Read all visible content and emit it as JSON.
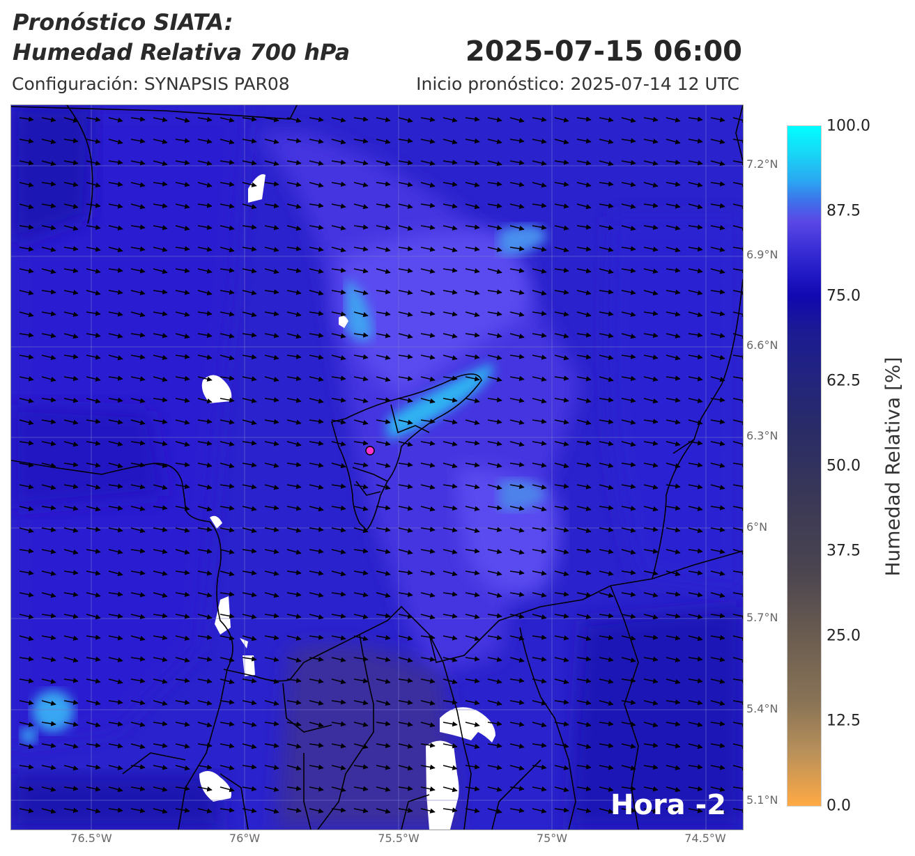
{
  "header": {
    "title_line1": "Pronóstico SIATA:",
    "title_line2": "Humedad Relativa 700 hPa",
    "valid_time": "2025-07-15 06:00",
    "configuration": "Configuración: SYNAPSIS PAR08",
    "forecast_start": "Inicio pronóstico: 2025-07-14 12 UTC"
  },
  "map": {
    "lat_labels": [
      "7.2°N",
      "6.9°N",
      "6.6°N",
      "6.3°N",
      "6°N",
      "5.7°N",
      "5.4°N",
      "5.1°N"
    ],
    "lon_labels": [
      "76.5°W",
      "76°W",
      "75.5°W",
      "75°W",
      "74.5°W"
    ],
    "hour_label": "Hora -2",
    "colors": {
      "field_dark": "#1a13b8",
      "field_mid": "#3a2fdc",
      "field_light": "#5f55ee",
      "moist": "#29b6f6",
      "sat": "#00ffff",
      "marker": "#ff33cc"
    }
  },
  "colorbar": {
    "title": "Humedad Relativa [%]",
    "ticks": [
      "100.0",
      "87.5",
      "75.0",
      "62.5",
      "50.0",
      "37.5",
      "25.0",
      "12.5",
      "0.0"
    ],
    "top_color": "#00ffff",
    "bottom_color": "#ffaa44"
  }
}
